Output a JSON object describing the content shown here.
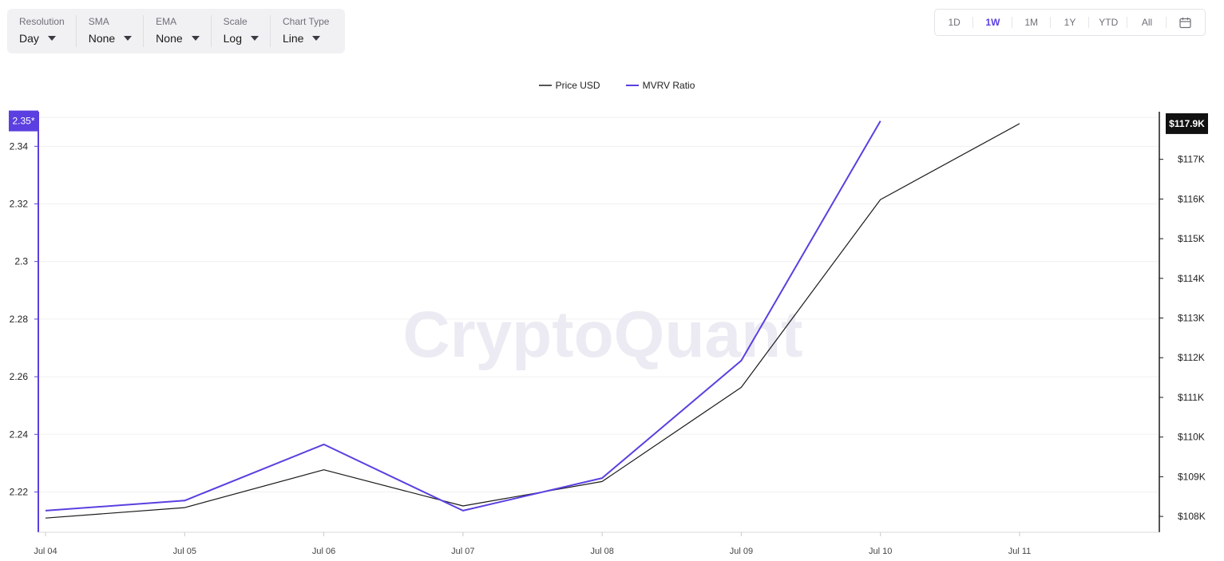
{
  "toolbar": {
    "resolution": {
      "label": "Resolution",
      "value": "Day"
    },
    "sma": {
      "label": "SMA",
      "value": "None"
    },
    "ema": {
      "label": "EMA",
      "value": "None"
    },
    "scale": {
      "label": "Scale",
      "value": "Log"
    },
    "chart_type": {
      "label": "Chart Type",
      "value": "Line"
    }
  },
  "ranges": [
    "1D",
    "1W",
    "1M",
    "1Y",
    "YTD",
    "All"
  ],
  "active_range": "1W",
  "icons": {
    "calendar": "calendar-icon",
    "dropdown": "chevron-down-icon"
  },
  "watermark": "CryptoQuant",
  "legend": [
    {
      "name": "Price USD",
      "color": "#555555"
    },
    {
      "name": "MVRV Ratio",
      "color": "#5b3fe0"
    }
  ],
  "chart_data": {
    "type": "line",
    "categories": [
      "Jul 04",
      "Jul 05",
      "Jul 06",
      "Jul 07",
      "Jul 08",
      "Jul 09",
      "Jul 10",
      "Jul 11"
    ],
    "series": [
      {
        "name": "Price USD",
        "axis": "right",
        "color": "#1a1a1a",
        "values": [
          107958,
          108221,
          109175,
          108264,
          108879,
          111253,
          115985,
          117900
        ]
      },
      {
        "name": "MVRV Ratio",
        "axis": "left",
        "color": "#5b3fe0",
        "values": [
          2.2135,
          2.217,
          2.2365,
          2.2135,
          2.2248,
          2.2656,
          2.3488,
          null
        ]
      }
    ],
    "y_left": {
      "ticks": [
        "2.22",
        "2.24",
        "2.26",
        "2.28",
        "2.3",
        "2.32",
        "2.34"
      ],
      "tick_values": [
        2.22,
        2.24,
        2.26,
        2.28,
        2.3,
        2.32,
        2.34
      ],
      "range": [
        2.206,
        2.352
      ]
    },
    "y_right": {
      "ticks": [
        "$108K",
        "$109K",
        "$110K",
        "$111K",
        "$112K",
        "$113K",
        "$114K",
        "$115K",
        "$116K",
        "$117K"
      ],
      "tick_values": [
        108000,
        109000,
        110000,
        111000,
        112000,
        113000,
        114000,
        115000,
        116000,
        117000
      ],
      "range": [
        107600,
        118200
      ]
    },
    "left_last_label": "2.35*",
    "right_last_label": "$117.9K",
    "left_axis_color": "#5b3fe0",
    "right_axis_color": "#1a1a1a",
    "grid": true
  }
}
